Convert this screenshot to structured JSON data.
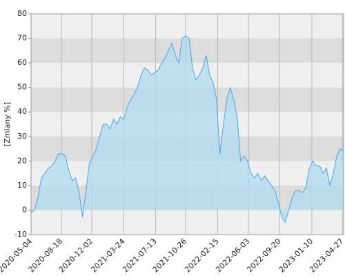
{
  "chart_data": {
    "type": "area",
    "y_label": "[Zmiany %]",
    "x": [
      "2020-05-04",
      "2020-05-16",
      "2020-05-28",
      "2020-06-09",
      "2020-06-21",
      "2020-07-03",
      "2020-07-15",
      "2020-07-27",
      "2020-08-08",
      "2020-08-20",
      "2020-09-01",
      "2020-09-13",
      "2020-09-25",
      "2020-10-07",
      "2020-10-19",
      "2020-10-31",
      "2020-11-12",
      "2020-11-24",
      "2020-12-06",
      "2020-12-18",
      "2020-12-30",
      "2021-01-11",
      "2021-01-23",
      "2021-02-04",
      "2021-02-16",
      "2021-02-28",
      "2021-03-12",
      "2021-03-24",
      "2021-04-05",
      "2021-04-17",
      "2021-04-29",
      "2021-05-11",
      "2021-05-23",
      "2021-06-04",
      "2021-06-16",
      "2021-06-28",
      "2021-07-10",
      "2021-07-22",
      "2021-08-03",
      "2021-08-15",
      "2021-08-27",
      "2021-09-08",
      "2021-09-20",
      "2021-10-02",
      "2021-10-14",
      "2021-10-26",
      "2021-11-07",
      "2021-11-19",
      "2021-12-01",
      "2021-12-13",
      "2021-12-25",
      "2022-01-06",
      "2022-01-18",
      "2022-01-30",
      "2022-02-11",
      "2022-02-23",
      "2022-03-07",
      "2022-03-19",
      "2022-03-31",
      "2022-04-12",
      "2022-04-24",
      "2022-05-06",
      "2022-05-18",
      "2022-05-30",
      "2022-06-11",
      "2022-06-23",
      "2022-07-05",
      "2022-07-17",
      "2022-07-29",
      "2022-08-10",
      "2022-08-22",
      "2022-09-03",
      "2022-09-15",
      "2022-09-27",
      "2022-10-09",
      "2022-10-21",
      "2022-11-02",
      "2022-11-14",
      "2022-11-26",
      "2022-12-08",
      "2022-12-20",
      "2023-01-01",
      "2023-01-13",
      "2023-01-25",
      "2023-02-06",
      "2023-02-18",
      "2023-03-02",
      "2023-03-14",
      "2023-03-26",
      "2023-04-07",
      "2023-04-19",
      "2023-05-01"
    ],
    "values": [
      -1,
      0,
      5,
      13,
      15,
      17,
      18,
      20,
      23,
      23,
      22,
      16,
      12,
      13,
      7,
      -3,
      8,
      19,
      22,
      25,
      30,
      35,
      35,
      33,
      37,
      35,
      38,
      37,
      42,
      45,
      47,
      50,
      55,
      58,
      57,
      55,
      56,
      57,
      60,
      62,
      65,
      68,
      63,
      60,
      70,
      71,
      70,
      58,
      53,
      55,
      58,
      63,
      55,
      52,
      45,
      23,
      35,
      45,
      50,
      45,
      38,
      20,
      22,
      20,
      15,
      13,
      15,
      12,
      14,
      12,
      10,
      8,
      3,
      -3,
      -5,
      0,
      5,
      8,
      8,
      7,
      9,
      17,
      20,
      18,
      18,
      15,
      17,
      10,
      15,
      22,
      25,
      24
    ],
    "color": "#4aa3e8",
    "fill_color": "#b3dcef",
    "xlim": [
      "2020-05-04",
      "2023-05-01"
    ],
    "xticks": [
      "2020-05-04",
      "2020-08-18",
      "2020-12-02",
      "2021-03-24",
      "2021-07-13",
      "2021-10-26",
      "2022-02-15",
      "2022-06-03",
      "2022-09-20",
      "2023-01-10",
      "2023-04-27"
    ],
    "ylim": [
      -10,
      80
    ],
    "yticks": [
      -10,
      0,
      10,
      20,
      30,
      40,
      50,
      60,
      70,
      80
    ],
    "band_colors": [
      "#efefef",
      "#dcdcdc"
    ],
    "grid": true
  }
}
